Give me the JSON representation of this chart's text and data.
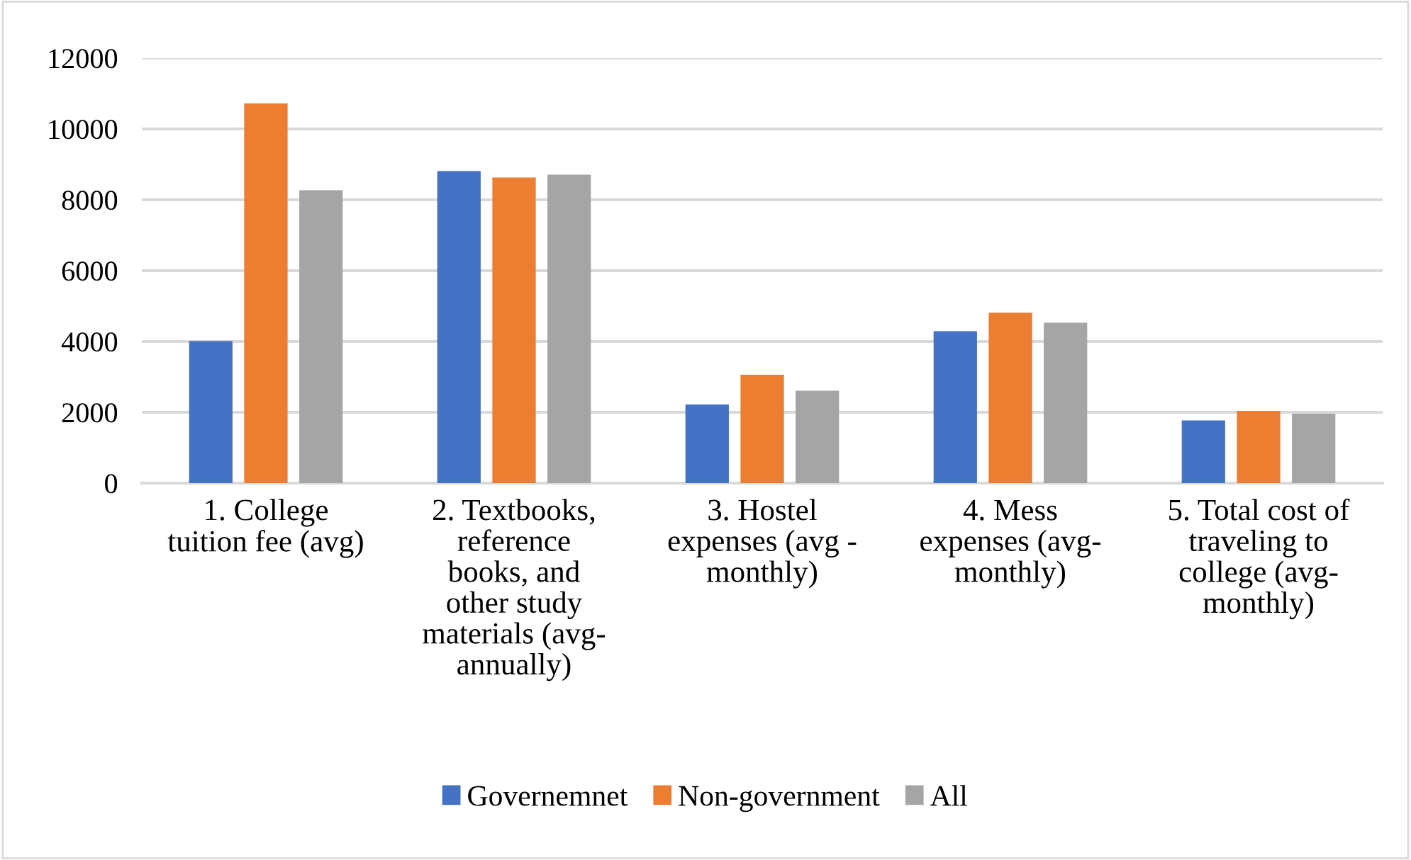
{
  "chart_data": {
    "type": "bar",
    "categories": [
      "1. College\ntuition fee (avg)",
      "2. Textbooks,\nreference\nbooks, and\nother study\nmaterials (avg-\nannually)",
      "3. Hostel\nexpenses (avg -\nmonthly)",
      "4. Mess\nexpenses (avg-\nmonthly)",
      "5. Total cost of\ntraveling to\ncollege (avg-\nmonthly)"
    ],
    "series": [
      {
        "name": "Governemnet",
        "color": "#4472c4",
        "values": [
          4010,
          8810,
          2220,
          4290,
          1770
        ]
      },
      {
        "name": "Non-government",
        "color": "#ed7d31",
        "values": [
          10720,
          8630,
          3060,
          4810,
          2040
        ]
      },
      {
        "name": "All",
        "color": "#a5a5a5",
        "values": [
          8270,
          8710,
          2610,
          4530,
          1960
        ]
      }
    ],
    "ylim": [
      0,
      12000
    ],
    "yticks": [
      0,
      2000,
      4000,
      6000,
      8000,
      10000,
      12000
    ],
    "grid": "y",
    "legend": "bottom"
  }
}
